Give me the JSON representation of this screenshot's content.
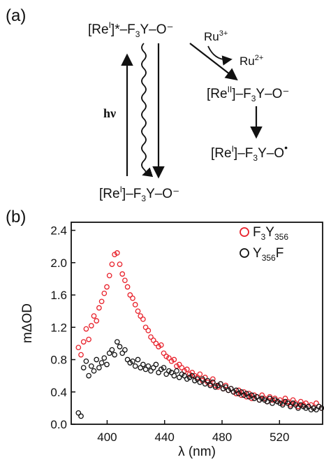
{
  "panel_a": {
    "label": "(a)",
    "species": {
      "excited": {
        "pre": "[Re",
        "ox": "I",
        "post": "]*–F",
        "sub": "3",
        "tail": "Y–O⁻"
      },
      "reii": {
        "pre": "[Re",
        "ox": "II",
        "post": "]–F",
        "sub": "3",
        "tail": "Y–O⁻"
      },
      "radical": {
        "pre": "[Re",
        "ox": "I",
        "post": "]–F",
        "sub": "3",
        "tail": "Y–O",
        "rad": "•"
      },
      "ground": {
        "pre": "[Re",
        "ox": "I",
        "post": "]–F",
        "sub": "3",
        "tail": "Y–O⁻"
      }
    },
    "excitation": "hν",
    "oxidant": {
      "base": "Ru",
      "sup": "3+"
    },
    "reduced": {
      "base": "Ru",
      "sup": "2+"
    }
  },
  "panel_b": {
    "label": "(b)"
  },
  "chart_data": {
    "type": "scatter",
    "xlabel": "λ (nm)",
    "ylabel": "mΔOD",
    "xlim": [
      375,
      550
    ],
    "ylim": [
      0.0,
      2.5
    ],
    "xticks": [
      400,
      440,
      480,
      520
    ],
    "yticks": [
      0.0,
      0.4,
      0.8,
      1.2,
      1.6,
      2.0,
      2.4
    ],
    "legend": "top-right",
    "series": [
      {
        "name": "F3Y356",
        "legend_label": {
          "a": "F",
          "a_sub": "3",
          "b": "Y",
          "b_sub": "356"
        },
        "color": "#e8202a",
        "x": [
          380,
          381.8,
          383.6,
          385.4,
          387.2,
          389,
          390.8,
          392.6,
          394.4,
          396.2,
          398,
          399.8,
          401.6,
          403.4,
          405.2,
          407,
          408.8,
          410.6,
          412.4,
          414.2,
          416,
          417.8,
          419.6,
          421.4,
          423.2,
          425,
          426.8,
          428.6,
          430.4,
          432.2,
          434,
          435.8,
          437.6,
          439.4,
          441.2,
          443,
          444.8,
          446.6,
          448.4,
          450.2,
          452,
          453.8,
          455.6,
          457.4,
          459.2,
          461,
          462.8,
          464.6,
          466.4,
          468.2,
          470,
          471.8,
          473.6,
          475.4,
          477.2,
          479,
          480.8,
          482.6,
          484.4,
          486.2,
          488,
          489.8,
          491.6,
          493.4,
          495.2,
          497,
          498.8,
          500.6,
          502.4,
          504.2,
          506,
          507.8,
          509.6,
          511.4,
          513.2,
          515,
          516.8,
          518.6,
          520.4,
          522.2,
          524,
          525.8,
          527.6,
          529.4,
          531.2,
          533,
          534.8,
          536.6,
          538.4,
          540.2,
          542,
          543.8,
          545.6,
          547.4,
          549.2
        ],
        "y": [
          0.95,
          0.86,
          1.02,
          1.18,
          1.05,
          1.22,
          1.34,
          1.28,
          1.44,
          1.52,
          1.62,
          1.7,
          1.84,
          1.98,
          2.1,
          2.12,
          1.98,
          1.86,
          1.78,
          1.7,
          1.6,
          1.56,
          1.48,
          1.4,
          1.34,
          1.3,
          1.2,
          1.16,
          1.08,
          1.04,
          1.0,
          0.96,
          0.98,
          0.88,
          0.84,
          0.82,
          0.78,
          0.8,
          0.72,
          0.74,
          0.7,
          0.66,
          0.68,
          0.62,
          0.64,
          0.6,
          0.58,
          0.62,
          0.54,
          0.58,
          0.52,
          0.5,
          0.56,
          0.48,
          0.46,
          0.5,
          0.44,
          0.48,
          0.42,
          0.44,
          0.4,
          0.38,
          0.42,
          0.36,
          0.4,
          0.34,
          0.38,
          0.32,
          0.36,
          0.34,
          0.3,
          0.36,
          0.32,
          0.28,
          0.34,
          0.3,
          0.32,
          0.28,
          0.3,
          0.26,
          0.32,
          0.28,
          0.24,
          0.3,
          0.26,
          0.22,
          0.28,
          0.24,
          0.26,
          0.22,
          0.24,
          0.2,
          0.26,
          0.22,
          0.2
        ]
      },
      {
        "name": "Y356F",
        "legend_label": {
          "a": "Y",
          "a_sub": "356",
          "b": "F",
          "b_sub": ""
        },
        "color": "#111111",
        "x": [
          380,
          381.8,
          383.6,
          385.4,
          387.2,
          389,
          390.8,
          392.6,
          394.4,
          396.2,
          398,
          399.8,
          401.6,
          403.4,
          405.2,
          407,
          408.8,
          410.6,
          412.4,
          414.2,
          416,
          417.8,
          419.6,
          421.4,
          423.2,
          425,
          426.8,
          428.6,
          430.4,
          432.2,
          434,
          435.8,
          437.6,
          439.4,
          441.2,
          443,
          444.8,
          446.6,
          448.4,
          450.2,
          452,
          453.8,
          455.6,
          457.4,
          459.2,
          461,
          462.8,
          464.6,
          466.4,
          468.2,
          470,
          471.8,
          473.6,
          475.4,
          477.2,
          479,
          480.8,
          482.6,
          484.4,
          486.2,
          488,
          489.8,
          491.6,
          493.4,
          495.2,
          497,
          498.8,
          500.6,
          502.4,
          504.2,
          506,
          507.8,
          509.6,
          511.4,
          513.2,
          515,
          516.8,
          518.6,
          520.4,
          522.2,
          524,
          525.8,
          527.6,
          529.4,
          531.2,
          533,
          534.8,
          536.6,
          538.4,
          540.2,
          542,
          543.8,
          545.6,
          547.4,
          549.2
        ],
        "y": [
          0.14,
          0.1,
          0.7,
          0.78,
          0.6,
          0.72,
          0.66,
          0.8,
          0.7,
          0.76,
          0.82,
          0.74,
          0.88,
          0.92,
          0.86,
          1.02,
          0.96,
          0.88,
          0.92,
          0.8,
          0.76,
          0.78,
          0.72,
          0.8,
          0.7,
          0.74,
          0.68,
          0.72,
          0.66,
          0.7,
          0.74,
          0.64,
          0.68,
          0.7,
          0.62,
          0.66,
          0.64,
          0.6,
          0.66,
          0.58,
          0.62,
          0.6,
          0.56,
          0.58,
          0.6,
          0.54,
          0.56,
          0.52,
          0.56,
          0.5,
          0.54,
          0.48,
          0.52,
          0.46,
          0.48,
          0.5,
          0.44,
          0.46,
          0.42,
          0.44,
          0.4,
          0.42,
          0.38,
          0.4,
          0.36,
          0.38,
          0.34,
          0.36,
          0.32,
          0.34,
          0.3,
          0.32,
          0.3,
          0.28,
          0.32,
          0.26,
          0.3,
          0.28,
          0.26,
          0.24,
          0.28,
          0.26,
          0.22,
          0.26,
          0.24,
          0.2,
          0.24,
          0.22,
          0.2,
          0.22,
          0.18,
          0.2,
          0.18,
          0.22,
          0.2
        ]
      }
    ]
  }
}
